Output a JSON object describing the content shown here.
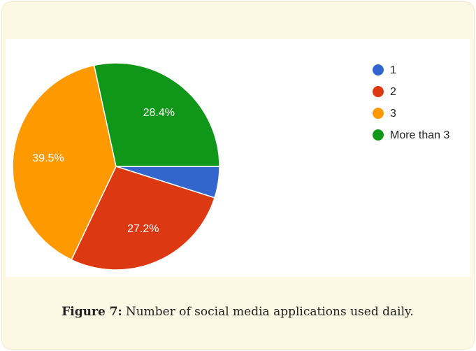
{
  "chart_data": {
    "type": "pie",
    "categories": [
      "1",
      "2",
      "3",
      "More than 3"
    ],
    "values": [
      4.9,
      27.2,
      39.5,
      28.4
    ],
    "value_labels": [
      null,
      "27.2%",
      "39.5%",
      "28.4%"
    ],
    "colors": [
      "#3366cc",
      "#dc3912",
      "#ff9900",
      "#109618"
    ],
    "caption_label": "Figure 7:",
    "caption_text": "Number of social media applications used daily."
  }
}
